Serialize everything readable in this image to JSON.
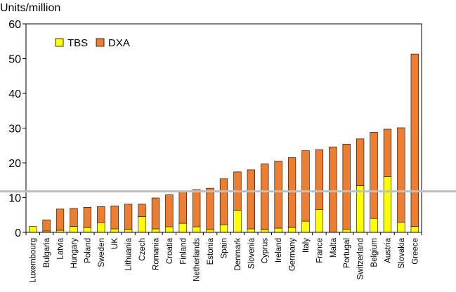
{
  "chart_data": {
    "type": "bar",
    "stacked": true,
    "ylabel": "Units/million",
    "ylim": [
      0,
      60
    ],
    "yticks": [
      0,
      10,
      20,
      30,
      40,
      50,
      60
    ],
    "categories": [
      "Luxembourg",
      "Bulgaria",
      "Latvia",
      "Hungary",
      "Poland",
      "Sweden",
      "UK",
      "Lithuania",
      "Czech",
      "Romania",
      "Croatia",
      "Finland",
      "Netherlands",
      "Estonia",
      "Spain",
      "Denmark",
      "Slovenia",
      "Cyprus",
      "Ireland",
      "Germany",
      "Italy",
      "France",
      "Malta",
      "Portugal",
      "Switzerland",
      "Belgium",
      "Austria",
      "Slovakia",
      "Greece"
    ],
    "series": [
      {
        "name": "TBS",
        "color": "#ffff00",
        "values": [
          1.7,
          0.4,
          0.6,
          1.7,
          1.4,
          2.8,
          1.0,
          0.8,
          4.5,
          1.0,
          1.6,
          2.6,
          1.6,
          0.8,
          2.2,
          6.4,
          1.0,
          0.8,
          1.2,
          1.4,
          3.2,
          6.6,
          0.0,
          0.9,
          13.4,
          4.0,
          16.1,
          2.9,
          1.7
        ]
      },
      {
        "name": "DXA",
        "color": "#ed7d31",
        "values": [
          0.0,
          3.2,
          6.1,
          5.2,
          5.8,
          4.6,
          6.6,
          7.3,
          3.6,
          8.9,
          9.2,
          9.0,
          10.7,
          11.9,
          13.2,
          11.0,
          17.0,
          18.9,
          19.3,
          20.1,
          20.3,
          17.2,
          24.6,
          24.5,
          13.5,
          24.8,
          13.6,
          27.2,
          49.6
        ]
      }
    ],
    "reference_line": {
      "value": 11.8,
      "color": "#bfbfbf"
    },
    "legend": {
      "placement": "top-left"
    }
  }
}
